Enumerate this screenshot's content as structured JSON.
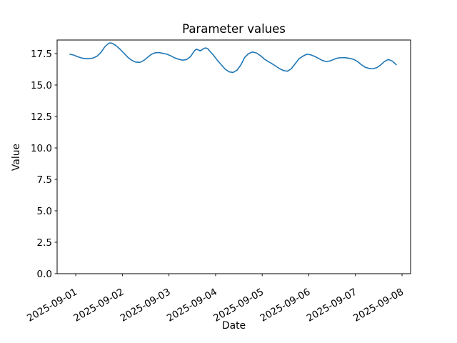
{
  "chart_data": {
    "type": "line",
    "title": "Parameter values",
    "xlabel": "Date",
    "ylabel": "Value",
    "grid": false,
    "legend": "none",
    "background_color": "#ffffff",
    "axes_color": "#000000",
    "x_unit": "hours from start of series (hourly samples, one point per hour estimated)",
    "xlim": [
      -6.6,
      175.4
    ],
    "ylim": [
      0,
      18.58
    ],
    "x_ticks": [
      {
        "t": 3,
        "label": "2025-09-01"
      },
      {
        "t": 27,
        "label": "2025-09-02"
      },
      {
        "t": 51,
        "label": "2025-09-03"
      },
      {
        "t": 75,
        "label": "2025-09-04"
      },
      {
        "t": 99,
        "label": "2025-09-05"
      },
      {
        "t": 123,
        "label": "2025-09-06"
      },
      {
        "t": 147,
        "label": "2025-09-07"
      },
      {
        "t": 171,
        "label": "2025-09-08"
      }
    ],
    "y_ticks": [
      {
        "v": 0,
        "label": "0.0"
      },
      {
        "v": 2.5,
        "label": "2.5"
      },
      {
        "v": 5,
        "label": "5.0"
      },
      {
        "v": 7.5,
        "label": "7.5"
      },
      {
        "v": 10,
        "label": "10.0"
      },
      {
        "v": 12.5,
        "label": "12.5"
      },
      {
        "v": 15,
        "label": "15.0"
      },
      {
        "v": 17.5,
        "label": "17.5"
      }
    ],
    "series": [
      {
        "name": "parameter-values",
        "color": "#1f77b4",
        "line_width": 1.6,
        "x_hours": [
          0,
          2,
          4,
          6,
          8,
          10,
          12,
          14,
          16,
          18,
          20,
          21,
          22,
          24,
          26,
          28,
          30,
          32,
          34,
          36,
          38,
          40,
          42,
          44,
          46,
          48,
          50,
          52,
          54,
          56,
          58,
          60,
          62,
          64,
          65,
          66,
          67,
          68,
          69,
          70,
          71,
          72,
          74,
          76,
          78,
          80,
          82,
          84,
          86,
          88,
          90,
          92,
          94,
          96,
          98,
          100,
          102,
          104,
          106,
          108,
          110,
          112,
          114,
          116,
          118,
          120,
          122,
          124,
          126,
          128,
          130,
          132,
          134,
          136,
          138,
          140,
          142,
          144,
          146,
          148,
          150,
          152,
          154,
          156,
          158,
          160,
          162,
          164,
          166,
          168
        ],
        "values": [
          17.45,
          17.38,
          17.25,
          17.15,
          17.1,
          17.1,
          17.15,
          17.3,
          17.6,
          18.05,
          18.32,
          18.35,
          18.3,
          18.1,
          17.82,
          17.5,
          17.18,
          16.95,
          16.82,
          16.8,
          16.95,
          17.2,
          17.45,
          17.57,
          17.58,
          17.52,
          17.45,
          17.32,
          17.15,
          17.05,
          16.98,
          17.02,
          17.25,
          17.7,
          17.85,
          17.8,
          17.72,
          17.8,
          17.92,
          17.95,
          17.88,
          17.7,
          17.35,
          16.95,
          16.6,
          16.25,
          16.05,
          16.0,
          16.18,
          16.6,
          17.2,
          17.5,
          17.63,
          17.55,
          17.35,
          17.08,
          16.88,
          16.7,
          16.5,
          16.3,
          16.15,
          16.1,
          16.3,
          16.7,
          17.1,
          17.3,
          17.45,
          17.4,
          17.28,
          17.12,
          16.95,
          16.86,
          16.92,
          17.05,
          17.15,
          17.18,
          17.17,
          17.12,
          17.05,
          16.88,
          16.62,
          16.42,
          16.32,
          16.3,
          16.38,
          16.6,
          16.88,
          17.03,
          16.9,
          16.62
        ]
      }
    ]
  }
}
